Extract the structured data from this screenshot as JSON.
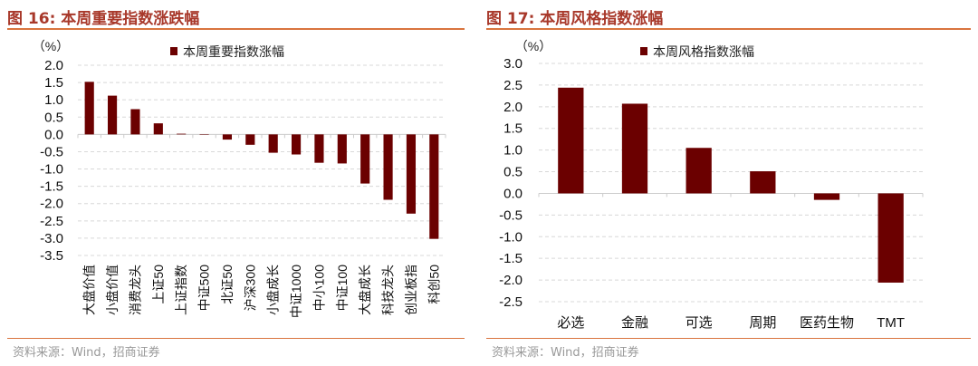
{
  "charts_meta": [
    {
      "title": "图 16:  本周重要指数涨跌幅",
      "source": "资料来源：Wind，招商证券"
    },
    {
      "title": "图 17:  本周风格指数涨幅",
      "source": "资料来源：Wind，招商证券"
    }
  ],
  "bar_color": "#6b0000",
  "chart_data": [
    {
      "type": "bar",
      "title": "",
      "ylabel": "（%）",
      "legend": "本周重要指数涨幅",
      "legend_placement": "top",
      "ylim": [
        -3.5,
        2.0
      ],
      "ytick_step": 0.5,
      "grid": true,
      "categories": [
        "大盘价值",
        "小盘价值",
        "消费龙头",
        "上证50",
        "上证指数",
        "中证500",
        "北证50",
        "沪深300",
        "小盘成长",
        "中证1000",
        "中小100",
        "中证100",
        "大盘成长",
        "科技龙头",
        "创业板指",
        "科创50"
      ],
      "series": [
        {
          "name": "本周重要指数涨幅",
          "values": [
            1.52,
            1.12,
            0.73,
            0.32,
            0.02,
            0.0,
            -0.15,
            -0.3,
            -0.53,
            -0.58,
            -0.82,
            -0.84,
            -1.42,
            -1.89,
            -2.29,
            -3.02
          ]
        }
      ]
    },
    {
      "type": "bar",
      "title": "",
      "ylabel": "（%）",
      "legend": "本周风格指数涨幅",
      "legend_placement": "top",
      "ylim": [
        -2.5,
        3.0
      ],
      "ytick_step": 0.5,
      "grid": true,
      "categories": [
        "必选",
        "金融",
        "可选",
        "周期",
        "医药生物",
        "TMT"
      ],
      "series": [
        {
          "name": "本周风格指数涨幅",
          "values": [
            2.44,
            2.07,
            1.05,
            0.51,
            -0.15,
            -2.06
          ]
        }
      ]
    }
  ]
}
